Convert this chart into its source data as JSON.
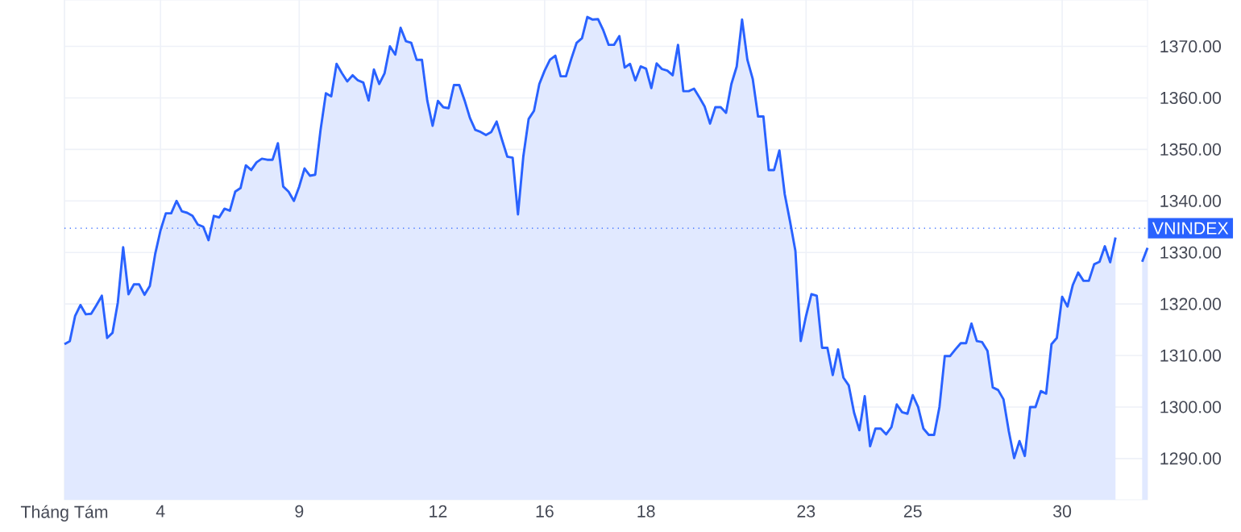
{
  "chart_data": {
    "type": "area",
    "color": "#2962ff",
    "grid": true,
    "ylim": [
      1282,
      1379
    ],
    "categories": [
      "Tháng Tám",
      null,
      null,
      null,
      null,
      null,
      null,
      null,
      null,
      null,
      null,
      null,
      null,
      null,
      null,
      null,
      null,
      null,
      "4",
      null,
      null,
      null,
      null,
      null,
      null,
      null,
      null,
      null,
      null,
      null,
      null,
      null,
      null,
      null,
      null,
      null,
      null,
      null,
      null,
      null,
      null,
      null,
      null,
      null,
      "9",
      null,
      null,
      null,
      null,
      null,
      null,
      null,
      null,
      null,
      null,
      null,
      null,
      null,
      null,
      null,
      null,
      null,
      null,
      null,
      null,
      null,
      null,
      null,
      null,
      null,
      "12",
      null,
      null,
      null,
      null,
      null,
      null,
      null,
      null,
      null,
      null,
      null,
      null,
      null,
      null,
      null,
      null,
      null,
      null,
      null,
      "16",
      null,
      null,
      null,
      null,
      null,
      null,
      null,
      null,
      null,
      null,
      null,
      null,
      null,
      null,
      null,
      null,
      null,
      null,
      "18",
      null,
      null,
      null,
      null,
      null,
      null,
      null,
      null,
      null,
      null,
      null,
      null,
      null,
      null,
      null,
      null,
      null,
      null,
      null,
      null,
      null,
      null,
      null,
      null,
      null,
      null,
      null,
      null,
      null,
      "23",
      null,
      null,
      null,
      null,
      null,
      null,
      null,
      null,
      null,
      null,
      null,
      null,
      null,
      null,
      null,
      null,
      null,
      null,
      null,
      "25",
      null,
      null,
      null,
      null,
      null,
      null,
      null,
      null,
      null,
      null,
      null,
      null,
      null,
      null,
      null,
      null,
      null,
      null,
      null,
      null,
      null,
      null,
      null,
      null,
      null,
      null,
      null,
      "30",
      null,
      null,
      null,
      null,
      null,
      null,
      null,
      null,
      null,
      null,
      null,
      null,
      null,
      null,
      null,
      null
    ],
    "yticks": [
      {
        "value": 1290,
        "label": "1290.00"
      },
      {
        "value": 1300,
        "label": "1300.00"
      },
      {
        "value": 1310,
        "label": "1310.00"
      },
      {
        "value": 1320,
        "label": "1320.00"
      },
      {
        "value": 1330,
        "label": "1330.00"
      },
      {
        "value": 1340,
        "label": "1340.00"
      },
      {
        "value": 1350,
        "label": "1350.00"
      },
      {
        "value": 1360,
        "label": "1360.00"
      },
      {
        "value": 1370,
        "label": "1370.00"
      }
    ],
    "ref_lines": [
      {
        "axis": "y",
        "value": 1334.7,
        "label": "VNINDEX",
        "color": "#2962ff",
        "line_style": "dotted"
      }
    ],
    "values": [
      1312.2,
      1312.8,
      1317.7,
      1319.8,
      1318.0,
      1318.1,
      1319.8,
      1321.6,
      1313.4,
      1314.4,
      1320.3,
      1331.0,
      1321.9,
      1323.8,
      1323.8,
      1321.8,
      1323.5,
      1329.7,
      1334.3,
      1337.6,
      1337.6,
      1340.0,
      1338.0,
      1337.7,
      1337.1,
      1335.4,
      1335.0,
      1332.4,
      1337.1,
      1336.8,
      1338.5,
      1338.1,
      1341.8,
      1342.5,
      1346.9,
      1346.0,
      1347.5,
      1348.2,
      1348.0,
      1348.0,
      1351.2,
      1342.8,
      1341.8,
      1340.0,
      1342.8,
      1346.3,
      1344.9,
      1345.1,
      1353.8,
      1360.9,
      1360.3,
      1366.6,
      1364.8,
      1363.2,
      1364.4,
      1363.4,
      1363.0,
      1359.5,
      1365.5,
      1362.7,
      1364.8,
      1370.0,
      1368.4,
      1373.6,
      1371.0,
      1370.7,
      1367.4,
      1367.4,
      1359.5,
      1354.6,
      1359.4,
      1358.2,
      1358.0,
      1362.5,
      1362.5,
      1359.5,
      1356.1,
      1353.8,
      1353.4,
      1352.8,
      1353.4,
      1355.4,
      1351.9,
      1348.6,
      1348.4,
      1337.4,
      1348.6,
      1355.9,
      1357.5,
      1362.7,
      1365.3,
      1367.4,
      1368.2,
      1364.2,
      1364.2,
      1367.6,
      1370.7,
      1371.6,
      1375.7,
      1375.2,
      1375.3,
      1373.1,
      1370.3,
      1370.3,
      1372.0,
      1365.9,
      1366.6,
      1363.4,
      1366.1,
      1365.7,
      1361.9,
      1366.7,
      1365.6,
      1365.3,
      1364.4,
      1370.3,
      1361.3,
      1361.3,
      1361.8,
      1360.1,
      1358.3,
      1355.0,
      1358.2,
      1358.2,
      1357.1,
      1362.7,
      1366.1,
      1375.2,
      1367.4,
      1363.7,
      1356.4,
      1356.4,
      1346.0,
      1346.0,
      1349.8,
      1341.3,
      1336.0,
      1330.3,
      1312.8,
      1317.7,
      1321.9,
      1321.6,
      1311.5,
      1311.5,
      1306.2,
      1311.2,
      1305.7,
      1304.2,
      1298.9,
      1295.5,
      1302.1,
      1292.4,
      1295.8,
      1295.8,
      1294.7,
      1296.1,
      1300.5,
      1299.0,
      1298.7,
      1302.3,
      1300.0,
      1295.8,
      1294.6,
      1294.6,
      1300.0,
      1309.9,
      1309.9,
      1311.2,
      1312.4,
      1312.4,
      1316.2,
      1312.8,
      1312.6,
      1310.9,
      1303.8,
      1303.3,
      1301.5,
      1295.3,
      1290.1,
      1293.4,
      1290.5,
      1300.0,
      1300.0,
      1303.1,
      1302.6,
      1312.2,
      1313.4,
      1321.4,
      1319.5,
      1323.7,
      1326.1,
      1324.5,
      1324.5,
      1327.7,
      1328.2,
      1331.2,
      1328.1,
      1332.9,
      null,
      null,
      null,
      null,
      1328.2,
      1330.9
    ]
  }
}
